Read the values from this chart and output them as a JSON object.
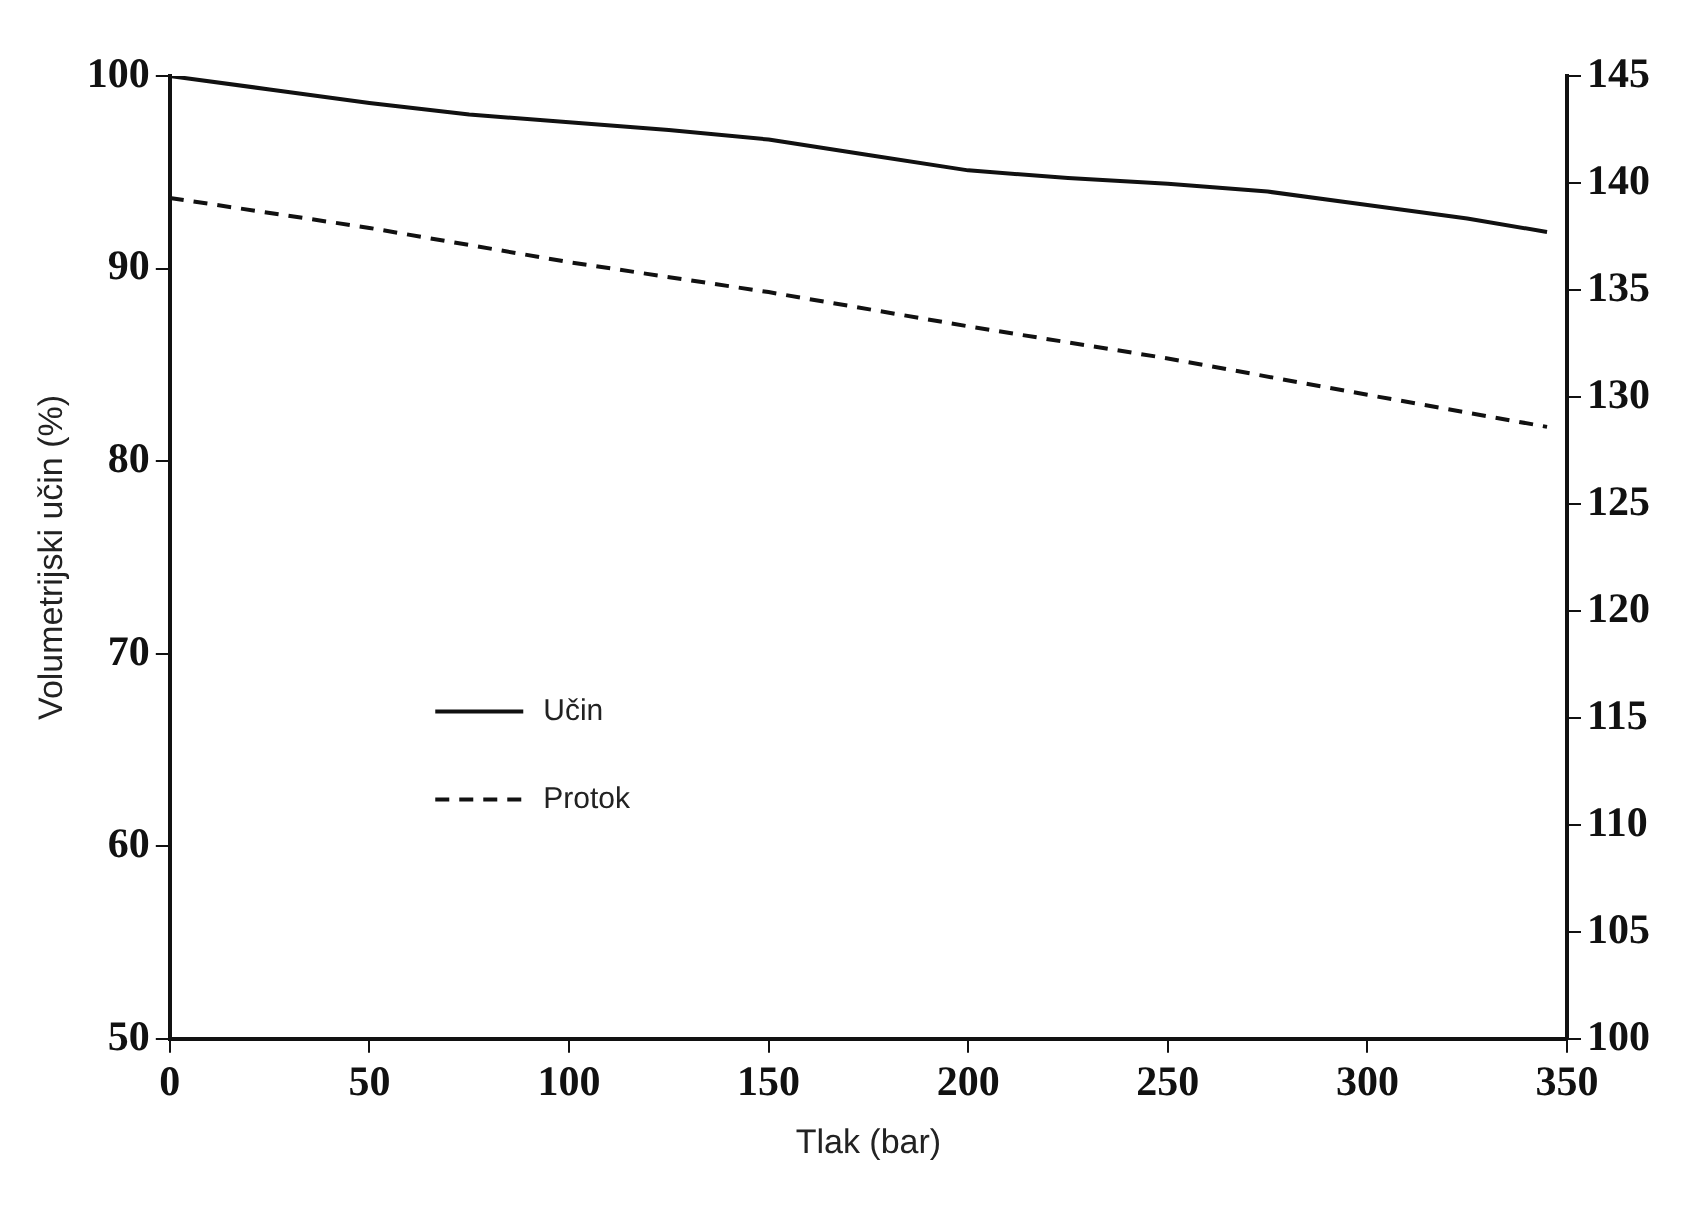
{
  "chart_data": {
    "type": "line",
    "xlabel": "Tlak (bar)",
    "ylabel": "Volumetrijski učin (%)",
    "xlim": [
      0,
      350
    ],
    "xticks": [
      0,
      50,
      100,
      150,
      200,
      250,
      300,
      350
    ],
    "ylim": [
      50,
      100
    ],
    "yticks": [
      50,
      60,
      70,
      80,
      90,
      100
    ],
    "y2lim": [
      100,
      145
    ],
    "y2ticks": [
      100,
      105,
      110,
      115,
      120,
      125,
      130,
      135,
      140,
      145
    ],
    "series": [
      {
        "name": "Učin",
        "color": "#111111",
        "line_style": "solid",
        "x": [
          0,
          25,
          50,
          75,
          100,
          125,
          150,
          175,
          200,
          225,
          250,
          275,
          300,
          325,
          345
        ],
        "values": [
          100,
          99.3,
          98.6,
          98,
          97.6,
          97.2,
          96.7,
          95.9,
          95.1,
          94.7,
          94.4,
          94,
          93.3,
          92.6,
          91.9
        ]
      },
      {
        "name": "Protok",
        "color": "#111111",
        "line_style": "dashed",
        "axis": "y2",
        "x": [
          0,
          50,
          100,
          150,
          200,
          250,
          300,
          345
        ],
        "values": [
          139.3,
          137.9,
          136.3,
          134.9,
          133.3,
          131.8,
          130.1,
          128.6
        ]
      }
    ],
    "legend": "center left",
    "grid": false,
    "marker": "none"
  }
}
